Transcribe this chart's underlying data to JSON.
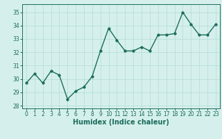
{
  "x": [
    0,
    1,
    2,
    3,
    4,
    5,
    6,
    7,
    8,
    9,
    10,
    11,
    12,
    13,
    14,
    15,
    16,
    17,
    18,
    19,
    20,
    21,
    22,
    23
  ],
  "y": [
    29.7,
    30.4,
    29.7,
    30.6,
    30.3,
    28.5,
    29.1,
    29.4,
    30.2,
    32.1,
    33.8,
    32.9,
    32.1,
    32.1,
    32.4,
    32.1,
    33.3,
    33.3,
    33.4,
    35.0,
    34.1,
    33.3,
    33.3,
    34.1
  ],
  "xlabel": "Humidex (Indice chaleur)",
  "xlim": [
    -0.5,
    23.5
  ],
  "ylim": [
    27.8,
    35.6
  ],
  "yticks": [
    28,
    29,
    30,
    31,
    32,
    33,
    34,
    35
  ],
  "xticks": [
    0,
    1,
    2,
    3,
    4,
    5,
    6,
    7,
    8,
    9,
    10,
    11,
    12,
    13,
    14,
    15,
    16,
    17,
    18,
    19,
    20,
    21,
    22,
    23
  ],
  "line_color": "#1a6b5a",
  "marker_size": 2.5,
  "bg_color": "#d5f0ec",
  "grid_color": "#b8ddd8",
  "line_width": 1.0,
  "axis_fontsize": 6.5,
  "tick_fontsize": 5.5,
  "xlabel_fontsize": 7.0
}
